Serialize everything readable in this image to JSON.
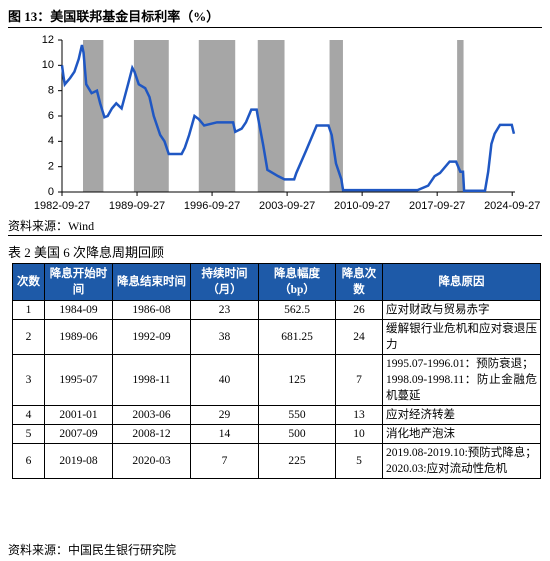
{
  "figure_title": "图 13：美国联邦基金目标利率（%）",
  "chart_data": {
    "type": "line",
    "x": [
      1982.74,
      1982.9,
      1983.0,
      1983.5,
      1983.9,
      1984.3,
      1984.6,
      1984.75,
      1985.0,
      1985.5,
      1986.0,
      1986.3,
      1986.7,
      1987.0,
      1987.4,
      1987.8,
      1988.3,
      1988.9,
      1989.3,
      1989.5,
      1989.9,
      1990.5,
      1990.9,
      1991.3,
      1991.9,
      1992.3,
      1992.7,
      1993.9,
      1994.2,
      1994.6,
      1995.1,
      1995.5,
      1996.0,
      1997.2,
      1998.7,
      1998.9,
      1999.5,
      1999.9,
      2000.4,
      2000.9,
      2001.0,
      2001.5,
      2001.9,
      2002.9,
      2003.5,
      2004.4,
      2004.6,
      2005.5,
      2006.5,
      2007.6,
      2007.9,
      2008.3,
      2008.8,
      2008.96,
      2015.9,
      2016.9,
      2017.5,
      2018.0,
      2018.9,
      2019.5,
      2019.9,
      2020.15,
      2020.25,
      2022.2,
      2022.5,
      2022.8,
      2023.1,
      2023.6,
      2024.7,
      2024.9
    ],
    "series": [
      {
        "color": "#1f57c3",
        "values": [
          10.0,
          9.0,
          8.5,
          9.0,
          9.5,
          10.5,
          11.6,
          11.0,
          8.5,
          7.8,
          8.0,
          7.0,
          5.9,
          6.0,
          6.6,
          7.0,
          6.6,
          8.5,
          9.8,
          9.5,
          8.5,
          8.2,
          7.5,
          6.0,
          4.5,
          4.0,
          3.0,
          3.0,
          3.5,
          4.5,
          6.0,
          5.75,
          5.25,
          5.5,
          5.5,
          4.75,
          5.0,
          5.5,
          6.5,
          6.5,
          6.0,
          3.75,
          1.75,
          1.25,
          1.0,
          1.0,
          1.5,
          3.25,
          5.25,
          5.25,
          4.5,
          2.25,
          1.0,
          0.15,
          0.15,
          0.5,
          1.25,
          1.5,
          2.4,
          2.4,
          1.6,
          1.6,
          0.1,
          0.1,
          1.6,
          3.8,
          4.6,
          5.3,
          5.3,
          4.6
        ]
      }
    ],
    "bands": [
      [
        1984.7,
        1986.6
      ],
      [
        1989.45,
        1992.7
      ],
      [
        1995.5,
        1998.9
      ],
      [
        2001.0,
        2003.5
      ],
      [
        2007.7,
        2008.95
      ],
      [
        2019.6,
        2020.2
      ]
    ],
    "band_color": "#a6a6a6",
    "xlim": [
      1982.74,
      2025.0
    ],
    "xticks": [
      {
        "value": 1982.74,
        "label": "1982-09-27"
      },
      {
        "value": 1989.74,
        "label": "1989-09-27"
      },
      {
        "value": 1996.74,
        "label": "1996-09-27"
      },
      {
        "value": 2003.74,
        "label": "2003-09-27"
      },
      {
        "value": 2010.74,
        "label": "2010-09-27"
      },
      {
        "value": 2017.74,
        "label": "2017-09-27"
      },
      {
        "value": 2024.74,
        "label": "2024-09-27"
      }
    ],
    "ylim": [
      0,
      12
    ],
    "yticks": [
      0,
      2,
      4,
      6,
      8,
      10,
      12
    ]
  },
  "chart_source": "资料来源：Wind",
  "table": {
    "caption": "表 2  美国 6 次降息周期回顾",
    "header": [
      "次数",
      "降息开始时间",
      "降息结束时间",
      "持续时间（月）",
      "降息幅度（bp）",
      "降息次数",
      "降息原因"
    ],
    "rows": [
      [
        1,
        "1984-09",
        "1986-08",
        23,
        562.5,
        26,
        [
          "应对财政与贸易赤字"
        ]
      ],
      [
        2,
        "1989-06",
        "1992-09",
        38,
        681.25,
        24,
        [
          "缓解银行业危机和应对衰退压力"
        ]
      ],
      [
        3,
        "1995-07",
        "1998-11",
        40,
        125,
        7,
        [
          "1995.07-1996.01：预防衰退；",
          "1998.09-1998.11：防止金融危机蔓延"
        ]
      ],
      [
        4,
        "2001-01",
        "2003-06",
        29,
        550,
        13,
        [
          "应对经济转差"
        ]
      ],
      [
        5,
        "2007-09",
        "2008-12",
        14,
        500,
        10,
        [
          "消化地产泡沫"
        ]
      ],
      [
        6,
        "2019-08",
        "2020-03",
        7,
        225,
        5,
        [
          "2019.08-2019.10:预防式降息；",
          "2020.03:应对流动性危机"
        ]
      ]
    ]
  },
  "table_source": "资料来源：中国民生银行研究院"
}
